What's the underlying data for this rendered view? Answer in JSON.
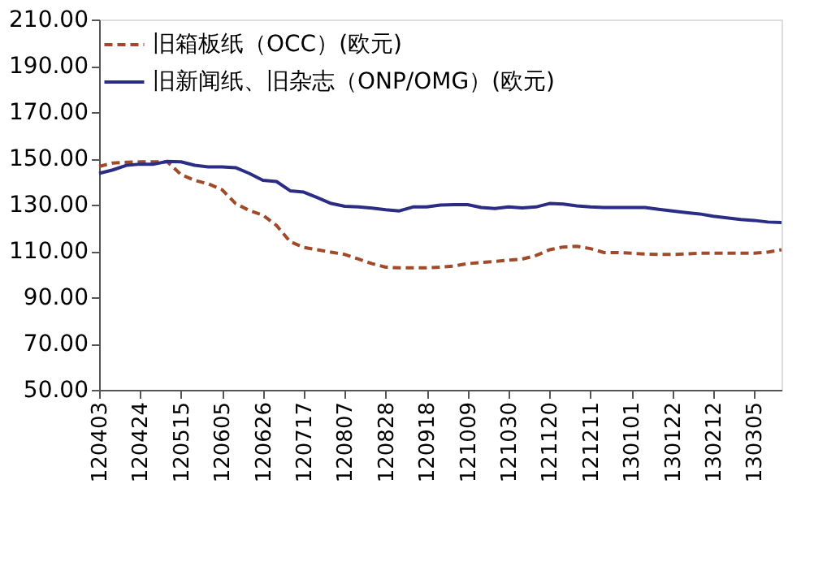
{
  "chart_data": {
    "type": "line",
    "categories": [
      "120403",
      null,
      null,
      "120424",
      null,
      null,
      "120515",
      null,
      null,
      "120605",
      null,
      null,
      "120626",
      null,
      null,
      "120717",
      null,
      null,
      "120807",
      null,
      null,
      "120828",
      null,
      null,
      "120918",
      null,
      null,
      "121009",
      null,
      null,
      "121030",
      null,
      null,
      "121120",
      null,
      null,
      "121211",
      null,
      null,
      "130101",
      null,
      null,
      "130122",
      null,
      null,
      "130212",
      null,
      null,
      "130305",
      null,
      null
    ],
    "series": [
      {
        "name": "旧箱板纸（OCC）(欧元)",
        "color": "#a04a2a",
        "line_style": "dashed",
        "values": [
          146.5,
          148,
          148.3,
          148.5,
          148.5,
          148.5,
          143,
          140.5,
          139,
          136.5,
          130.5,
          127.5,
          125.5,
          121,
          114,
          111.5,
          110.5,
          109.5,
          108.5,
          106.5,
          104.5,
          103,
          102.7,
          102.7,
          102.7,
          103,
          103.5,
          104.5,
          105,
          105.5,
          106,
          106.5,
          108,
          110.5,
          111.7,
          112,
          111,
          109.3,
          109.3,
          109,
          108.7,
          108.5,
          108.5,
          108.7,
          109,
          109,
          109,
          109,
          109,
          109.5,
          110.5
        ]
      },
      {
        "name": "旧新闻纸、旧杂志（ONP/OMG）(欧元)",
        "color": "#2b2d85",
        "line_style": "solid",
        "values": [
          143.5,
          145,
          147,
          147.5,
          147.5,
          148.7,
          148.5,
          147,
          146.3,
          146.3,
          146,
          143.5,
          140.5,
          140,
          136,
          135.4,
          133,
          130.5,
          129.3,
          129,
          128.5,
          127.8,
          127.3,
          129,
          129,
          129.8,
          130,
          130,
          128.8,
          128.3,
          129,
          128.6,
          129,
          130.5,
          130.3,
          129.5,
          129,
          128.8,
          128.8,
          128.8,
          128.8,
          128,
          127.3,
          126.6,
          126,
          125,
          124.3,
          123.6,
          123.2,
          122.5,
          122.3
        ]
      }
    ],
    "ylim": [
      50,
      210
    ],
    "yticks": [
      {
        "value": 50,
        "label": "50.00"
      },
      {
        "value": 70,
        "label": "70.00"
      },
      {
        "value": 90,
        "label": "90.00"
      },
      {
        "value": 110,
        "label": "110.00"
      },
      {
        "value": 130,
        "label": "130.00"
      },
      {
        "value": 150,
        "label": "150.00"
      },
      {
        "value": 170,
        "label": "170.00"
      },
      {
        "value": 190,
        "label": "190.00"
      },
      {
        "value": 210,
        "label": "210.00"
      }
    ],
    "grid": false,
    "legend": "top left",
    "marker": "none"
  }
}
